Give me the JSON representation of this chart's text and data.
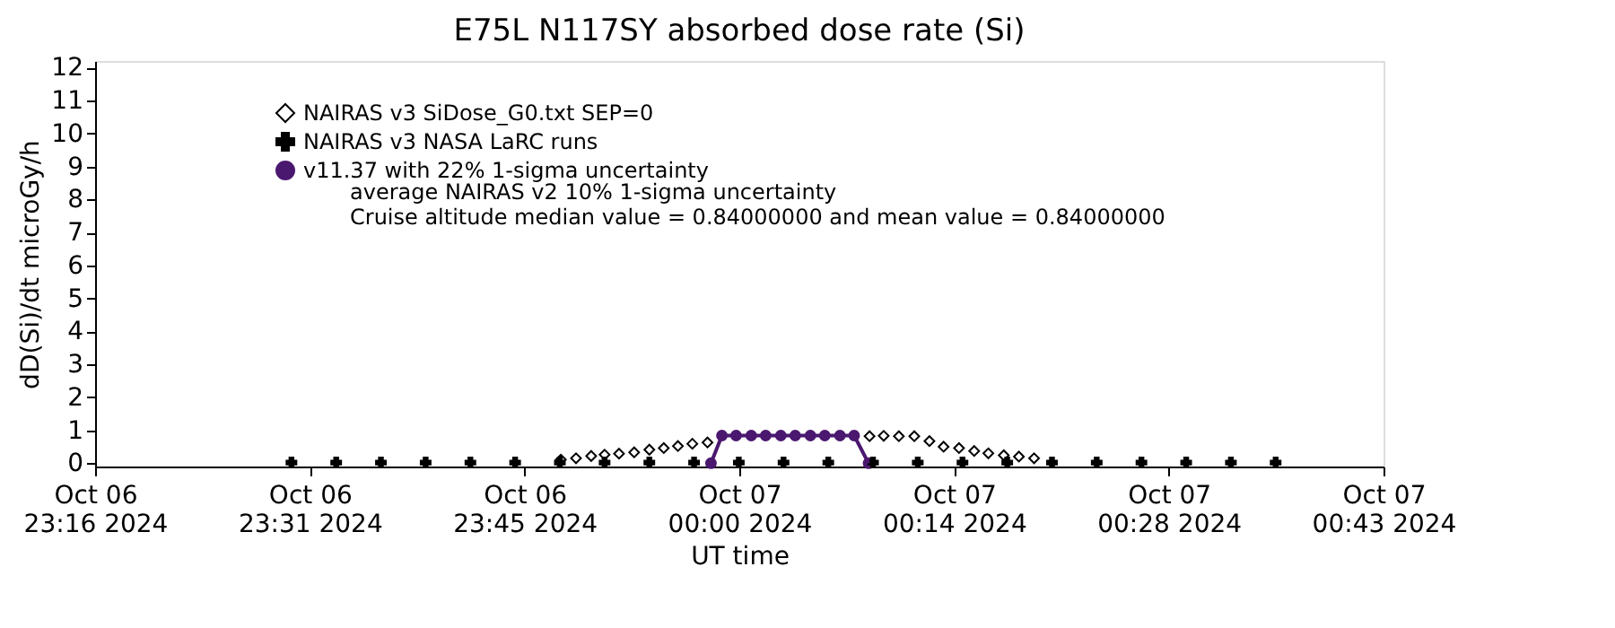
{
  "chart_data": {
    "type": "scatter",
    "title": "E75L N117SY absorbed dose rate (Si)",
    "xlabel": "UT time",
    "ylabel": "dD(Si)/dt microGy/h",
    "xlim": [
      "2024-10-06T23:16:50",
      "2024-10-07T00:43:14"
    ],
    "xticks": [
      {
        "value": "2024-10-06T23:16:50",
        "label": "Oct 06\n23:16 2024"
      },
      {
        "value": "2024-10-06T23:31:14",
        "label": "Oct 06\n23:31 2024"
      },
      {
        "value": "2024-10-06T23:45:38",
        "label": "Oct 06\n23:45 2024"
      },
      {
        "value": "2024-10-07T00:00:02",
        "label": "Oct 07\n00:00 2024"
      },
      {
        "value": "2024-10-07T00:14:26",
        "label": "Oct 07\n00:14 2024"
      },
      {
        "value": "2024-10-07T00:28:50",
        "label": "Oct 07\n00:28 2024"
      },
      {
        "value": "2024-10-07T00:43:14",
        "label": "Oct 07\n00:43 2024"
      }
    ],
    "ylim": [
      -0.1,
      12.2
    ],
    "yticks": [
      0,
      1,
      2,
      3,
      4,
      5,
      6,
      7,
      8,
      9,
      10,
      11,
      12
    ],
    "grid": false,
    "legend": "top left",
    "series": [
      {
        "name": "NAIRAS v3 SiDose_G0.txt SEP=0",
        "marker": "diamond",
        "color": "#000000",
        "x": [
          "2024-10-06T23:48:04",
          "2024-10-06T23:49:05",
          "2024-10-06T23:50:06",
          "2024-10-06T23:51:00",
          "2024-10-06T23:51:58",
          "2024-10-06T23:52:59",
          "2024-10-06T23:54:00",
          "2024-10-06T23:54:58",
          "2024-10-06T23:55:55",
          "2024-10-06T23:56:53",
          "2024-10-06T23:57:54",
          "2024-10-07T00:08:46",
          "2024-10-07T00:09:43",
          "2024-10-07T00:10:44",
          "2024-10-07T00:11:46",
          "2024-10-07T00:12:47",
          "2024-10-07T00:13:44",
          "2024-10-07T00:14:46",
          "2024-10-07T00:15:47",
          "2024-10-07T00:16:44",
          "2024-10-07T00:17:46",
          "2024-10-07T00:18:47",
          "2024-10-07T00:19:48"
        ],
        "values": [
          0.11,
          0.15,
          0.22,
          0.26,
          0.29,
          0.33,
          0.41,
          0.46,
          0.52,
          0.59,
          0.63,
          0.82,
          0.83,
          0.82,
          0.82,
          0.67,
          0.5,
          0.46,
          0.37,
          0.3,
          0.24,
          0.2,
          0.15
        ]
      },
      {
        "name": "NAIRAS v3 NASA LaRC runs",
        "marker": "cross",
        "color": "#000000",
        "x": [
          "2024-10-06T23:30",
          "2024-10-06T23:33",
          "2024-10-06T23:36",
          "2024-10-06T23:39",
          "2024-10-06T23:42",
          "2024-10-06T23:45",
          "2024-10-06T23:48",
          "2024-10-06T23:51",
          "2024-10-06T23:54",
          "2024-10-06T23:57",
          "2024-10-07T00:00",
          "2024-10-07T00:03",
          "2024-10-07T00:06",
          "2024-10-07T00:09",
          "2024-10-07T00:12",
          "2024-10-07T00:15",
          "2024-10-07T00:18",
          "2024-10-07T00:21",
          "2024-10-07T00:24",
          "2024-10-07T00:27",
          "2024-10-07T00:30",
          "2024-10-07T00:33",
          "2024-10-07T00:36"
        ],
        "values": [
          0.02,
          0.02,
          0.02,
          0.02,
          0.02,
          0.02,
          0.02,
          0.02,
          0.02,
          0.02,
          0.02,
          0.02,
          0.02,
          0.02,
          0.02,
          0.02,
          0.02,
          0.02,
          0.02,
          0.02,
          0.02,
          0.02,
          0.02
        ]
      },
      {
        "name": "v11.37 with 22% 1-sigma uncertainty",
        "type": "line",
        "marker": "circle",
        "line_style": "solid",
        "color": "#4b1870",
        "x": [
          "2024-10-06T23:58:08",
          "2024-10-06T23:58:52",
          "2024-10-06T23:59:49",
          "2024-10-07T00:00:50",
          "2024-10-07T00:01:48",
          "2024-10-07T00:02:49",
          "2024-10-07T00:03:47",
          "2024-10-07T00:04:48",
          "2024-10-07T00:05:46",
          "2024-10-07T00:06:47",
          "2024-10-07T00:07:44",
          "2024-10-07T00:08:42"
        ],
        "values": [
          0,
          0.84,
          0.84,
          0.84,
          0.84,
          0.84,
          0.84,
          0.84,
          0.84,
          0.84,
          0.84,
          0
        ]
      }
    ],
    "annotations": [
      "average NAIRAS v2 10% 1-sigma uncertainty",
      "Cruise altitude median value = 0.84000000 and mean value = 0.84000000"
    ]
  }
}
